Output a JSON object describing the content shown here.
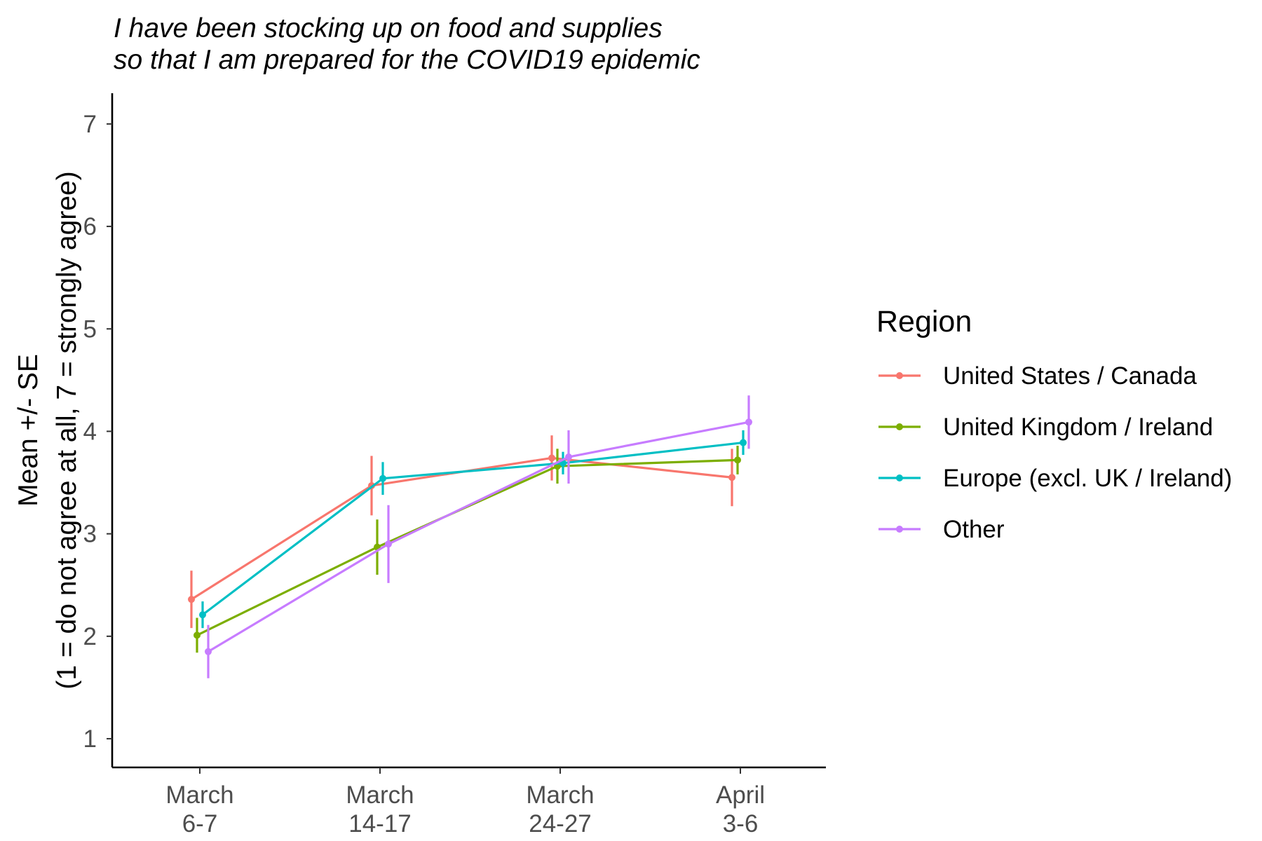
{
  "chart_data": {
    "type": "line",
    "title_lines": [
      "I have been stocking up on food and supplies",
      "so that I am prepared for the COVID19 epidemic"
    ],
    "ylabel_lines": [
      "Mean +/- SE",
      "(1 = do not agree at all, 7 = strongly agree)"
    ],
    "xlabel": "",
    "categories": [
      [
        "March",
        "6-7"
      ],
      [
        "March",
        "14-17"
      ],
      [
        "March",
        "24-27"
      ],
      [
        "April",
        "3-6"
      ]
    ],
    "ylim": [
      0.72,
      7.3
    ],
    "yticks": [
      1,
      2,
      3,
      4,
      5,
      6,
      7
    ],
    "grid": false,
    "error_bars": "mean +/- SE",
    "legend": {
      "title": "Region",
      "placement": "right"
    },
    "series": [
      {
        "name": "United States / Canada",
        "color": "#F8766D",
        "values": [
          2.36,
          3.47,
          3.74,
          3.55
        ],
        "lower": [
          2.08,
          3.18,
          3.52,
          3.27
        ],
        "upper": [
          2.64,
          3.76,
          3.96,
          3.83
        ]
      },
      {
        "name": "United Kingdom / Ireland",
        "color": "#7CAE00",
        "values": [
          2.01,
          2.87,
          3.66,
          3.72
        ],
        "lower": [
          1.84,
          2.6,
          3.49,
          3.58
        ],
        "upper": [
          2.18,
          3.14,
          3.83,
          3.86
        ]
      },
      {
        "name": "Europe (excl. UK / Ireland)",
        "color": "#00BFC4",
        "values": [
          2.21,
          3.54,
          3.69,
          3.89
        ],
        "lower": [
          2.08,
          3.38,
          3.58,
          3.77
        ],
        "upper": [
          2.34,
          3.7,
          3.8,
          4.01
        ]
      },
      {
        "name": "Other",
        "color": "#C77CFF",
        "values": [
          1.85,
          2.9,
          3.75,
          4.09
        ],
        "lower": [
          1.59,
          2.52,
          3.49,
          3.83
        ],
        "upper": [
          2.11,
          3.28,
          4.01,
          4.35
        ]
      }
    ]
  }
}
